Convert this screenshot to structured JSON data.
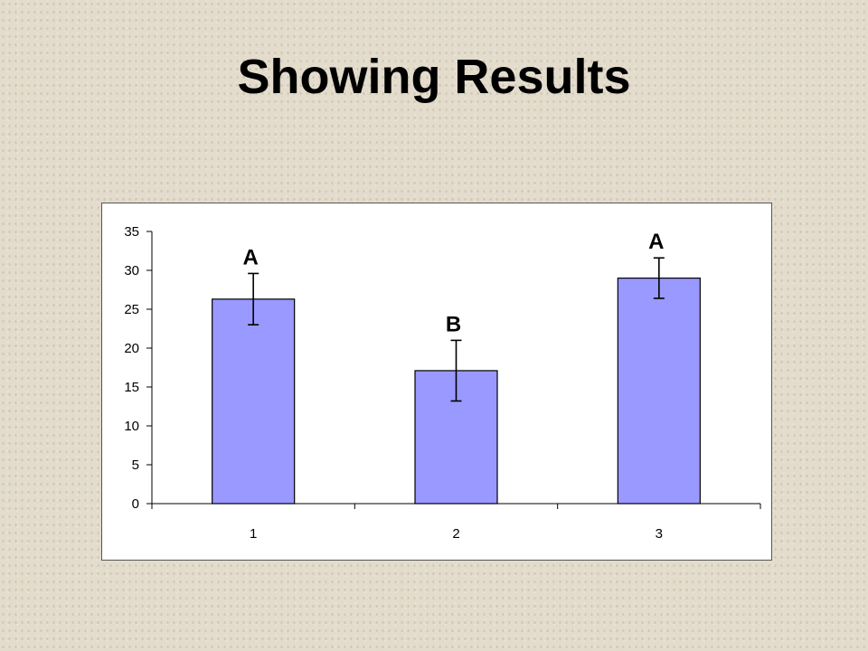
{
  "slide": {
    "title": "Showing Results"
  },
  "colors": {
    "bar_fill": "#9999ff",
    "bar_stroke": "#000000",
    "background": "#e3dccc"
  },
  "chart_data": {
    "type": "bar",
    "categories": [
      "1",
      "2",
      "3"
    ],
    "values": [
      26.3,
      17.1,
      29.0
    ],
    "error_bars": [
      3.3,
      3.9,
      2.6
    ],
    "bar_labels": [
      "A",
      "B",
      "A"
    ],
    "ylim": [
      0,
      35
    ],
    "y_ticks": [
      0,
      5,
      10,
      15,
      20,
      25,
      30,
      35
    ],
    "title": "",
    "xlabel": "",
    "ylabel": "",
    "grid": false,
    "legend": "none"
  }
}
